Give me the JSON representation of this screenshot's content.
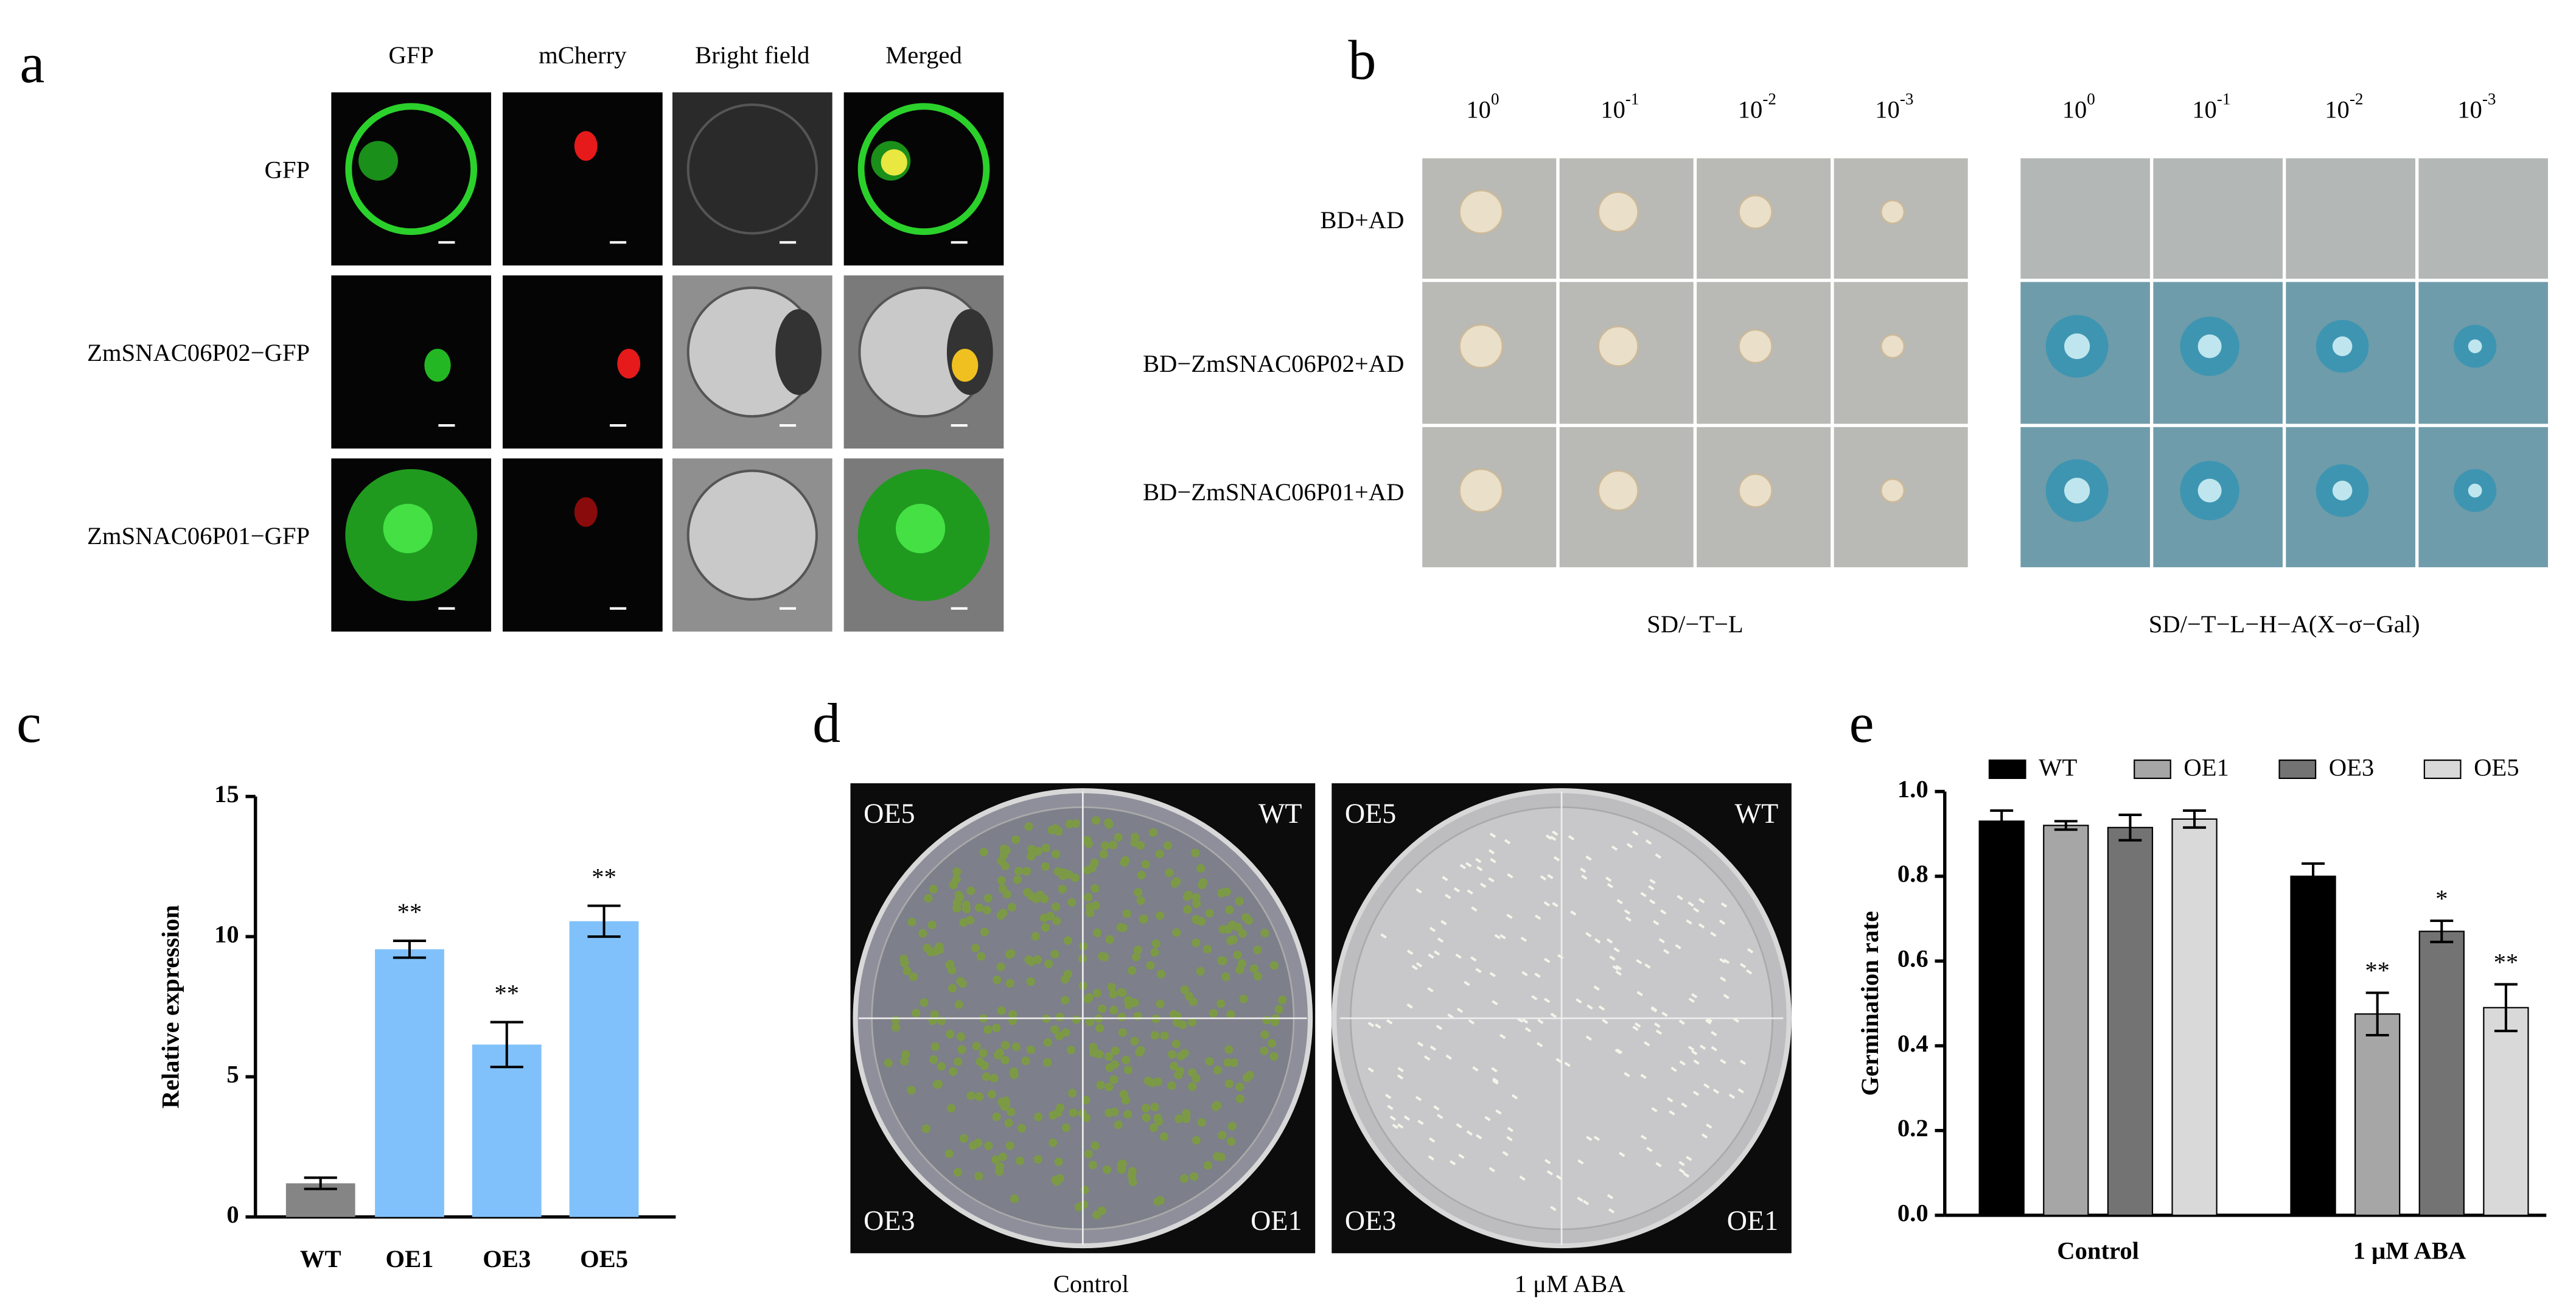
{
  "panel_labels": [
    "a",
    "b",
    "c",
    "d",
    "e"
  ],
  "panel_a": {
    "columns": [
      "GFP",
      "mCherry",
      "Bright field",
      "Merged"
    ],
    "rows": [
      "GFP",
      "ZmSNAC06P02−GFP",
      "ZmSNAC06P01−GFP"
    ]
  },
  "panel_b": {
    "dilutions": [
      {
        "base": "10",
        "exp": "0"
      },
      {
        "base": "10",
        "exp": "-1"
      },
      {
        "base": "10",
        "exp": "-2"
      },
      {
        "base": "10",
        "exp": "-3"
      }
    ],
    "rows": [
      "BD+AD",
      "BD−ZmSNAC06P02+AD",
      "BD−ZmSNAC06P01+AD"
    ],
    "media": [
      "SD/−T−L",
      "SD/−T−L−H−A(X−σ−Gal)"
    ]
  },
  "panel_d": {
    "plate_labels": [
      "OE5",
      "WT",
      "OE3",
      "OE1"
    ],
    "conditions": [
      "Control",
      "1 μM ABA"
    ]
  },
  "chart_data": [
    {
      "type": "bar",
      "categories": [
        "WT",
        "OE1",
        "OE3",
        "OE5"
      ],
      "values": [
        1.2,
        9.55,
        6.15,
        10.55
      ],
      "errors": [
        0.2,
        0.3,
        0.8,
        0.55
      ],
      "annotations": [
        null,
        "**",
        "**",
        "**"
      ],
      "colors": [
        "#858585",
        "#80c1fb",
        "#80c1fb",
        "#80c1fb"
      ],
      "ylabel": "Relative expression",
      "ylim": [
        0,
        15
      ],
      "yticks": [
        0,
        5,
        10,
        15
      ]
    },
    {
      "type": "grouped_bar",
      "categories": [
        "Control",
        "1 μM ABA"
      ],
      "series": [
        {
          "name": "WT",
          "color": "#000000",
          "values": [
            0.93,
            0.8
          ],
          "errors": [
            0.025,
            0.03
          ],
          "annotations": [
            null,
            null
          ]
        },
        {
          "name": "OE1",
          "color": "#a6a6a6",
          "values": [
            0.92,
            0.475
          ],
          "errors": [
            0.01,
            0.05
          ],
          "annotations": [
            null,
            "**"
          ]
        },
        {
          "name": "OE3",
          "color": "#737373",
          "values": [
            0.915,
            0.67
          ],
          "errors": [
            0.03,
            0.025
          ],
          "annotations": [
            null,
            "*"
          ]
        },
        {
          "name": "OE5",
          "color": "#d9d9d9",
          "values": [
            0.935,
            0.49
          ],
          "errors": [
            0.02,
            0.055
          ],
          "annotations": [
            null,
            "**"
          ]
        }
      ],
      "ylabel": "Germination rate",
      "ylim": [
        0,
        1
      ],
      "yticks": [
        {
          "value": 0,
          "label": "0.0"
        },
        0.2,
        0.4,
        0.6,
        0.8,
        {
          "value": 1,
          "label": "1.0"
        }
      ],
      "legend": "top"
    }
  ]
}
